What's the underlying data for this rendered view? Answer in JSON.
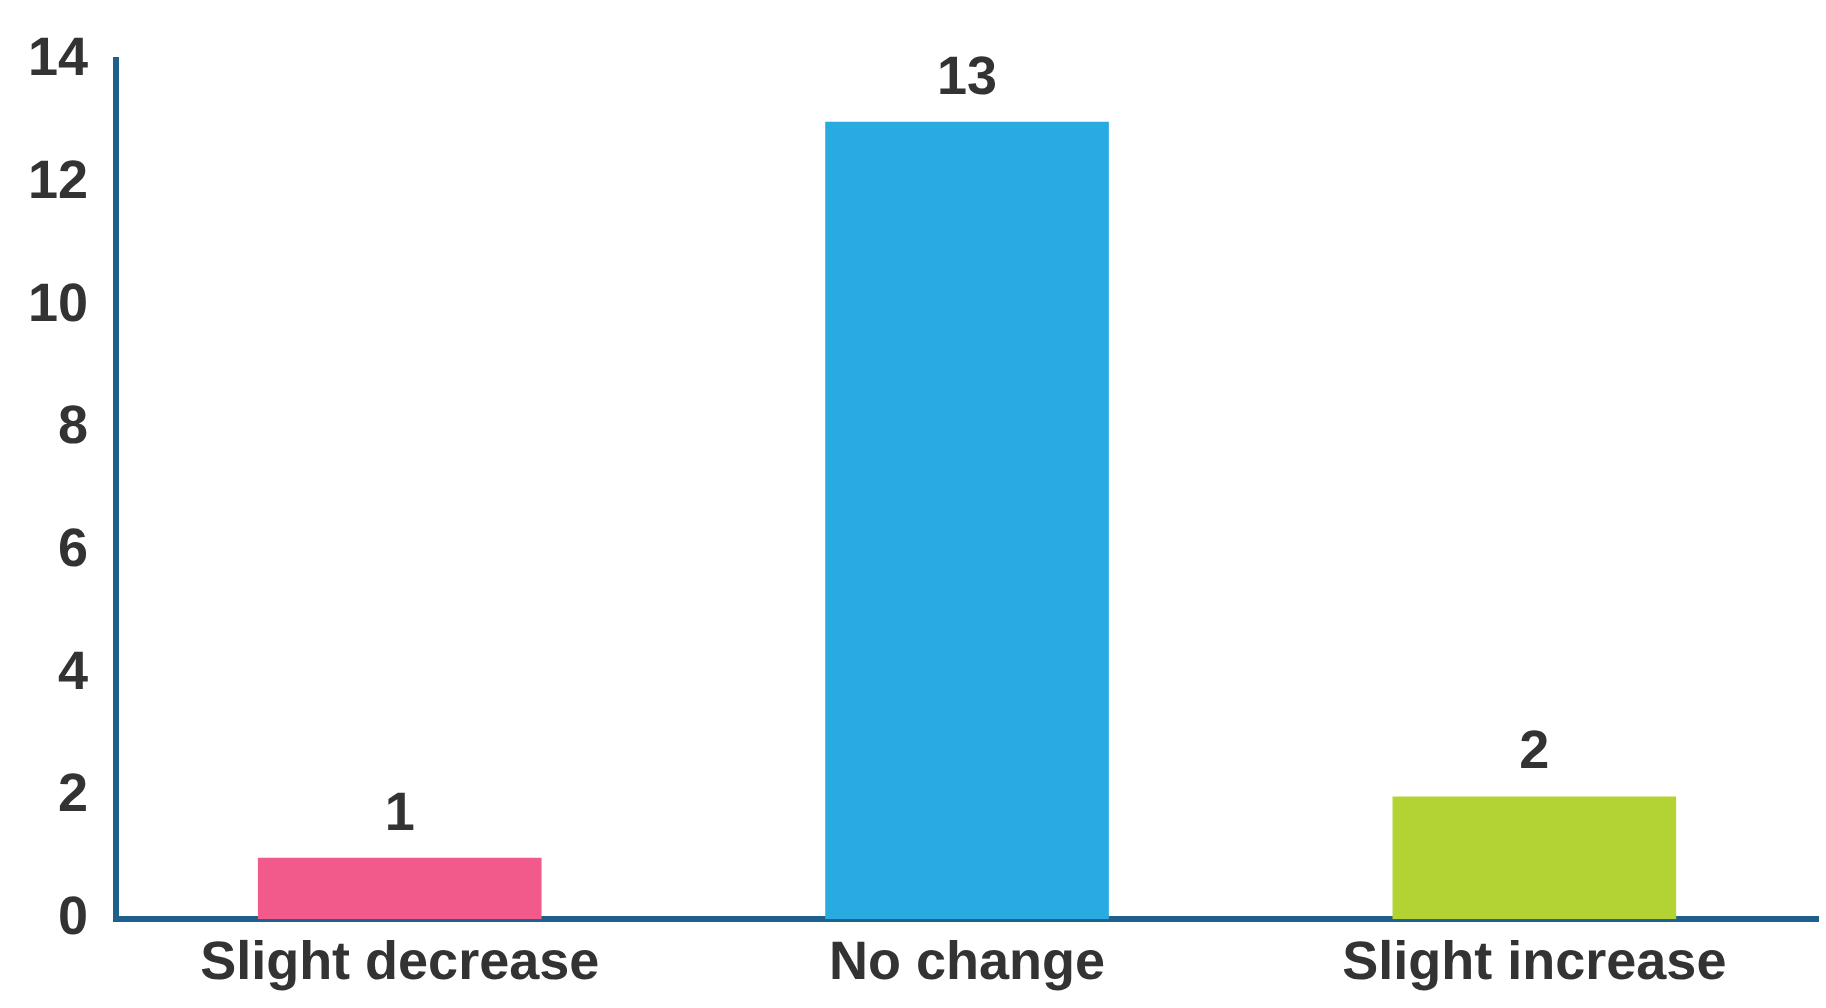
{
  "chart_data": {
    "type": "bar",
    "categories": [
      "Slight decrease",
      "No change",
      "Slight increase"
    ],
    "values": [
      1,
      13,
      2
    ],
    "colors": [
      "#f25a8c",
      "#29abe2",
      "#b3d334"
    ],
    "ylim": [
      0,
      14
    ],
    "yticks": [
      0,
      2,
      4,
      6,
      8,
      10,
      12,
      14
    ],
    "grid": false,
    "legend": false,
    "data_labels": true
  }
}
